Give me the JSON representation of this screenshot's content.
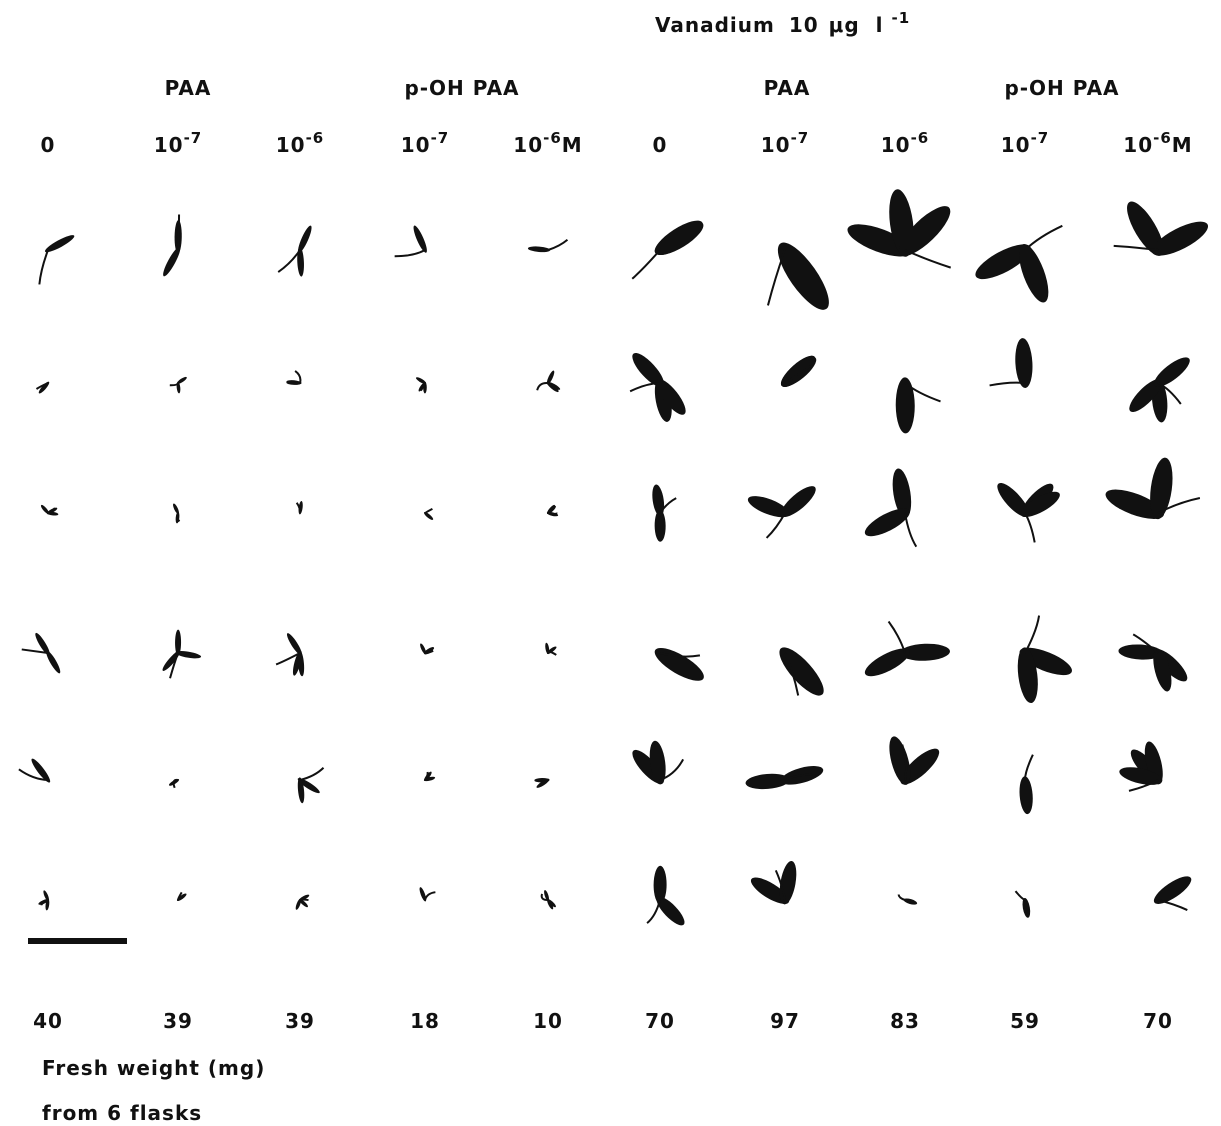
{
  "header": {
    "title": [
      "Vanadium",
      "10",
      "μg",
      "l",
      "-1"
    ]
  },
  "groups": [
    "PAA",
    "p-OH PAA",
    "PAA",
    "p-OH PAA"
  ],
  "columns": [
    {
      "base": "0"
    },
    {
      "base": "10",
      "exp": "-7"
    },
    {
      "base": "10",
      "exp": "-6"
    },
    {
      "base": "10",
      "exp": "-7"
    },
    {
      "base": "10",
      "exp": "-6",
      "unit": "M"
    },
    {
      "base": "0"
    },
    {
      "base": "10",
      "exp": "-7"
    },
    {
      "base": "10",
      "exp": "-6"
    },
    {
      "base": "10",
      "exp": "-7"
    },
    {
      "base": "10",
      "exp": "-6",
      "unit": "M"
    }
  ],
  "fresh_weights": [
    40,
    39,
    39,
    18,
    10,
    70,
    97,
    83,
    59,
    70
  ],
  "caption": [
    "Fresh weight (mg)",
    "from 6 flasks"
  ]
}
